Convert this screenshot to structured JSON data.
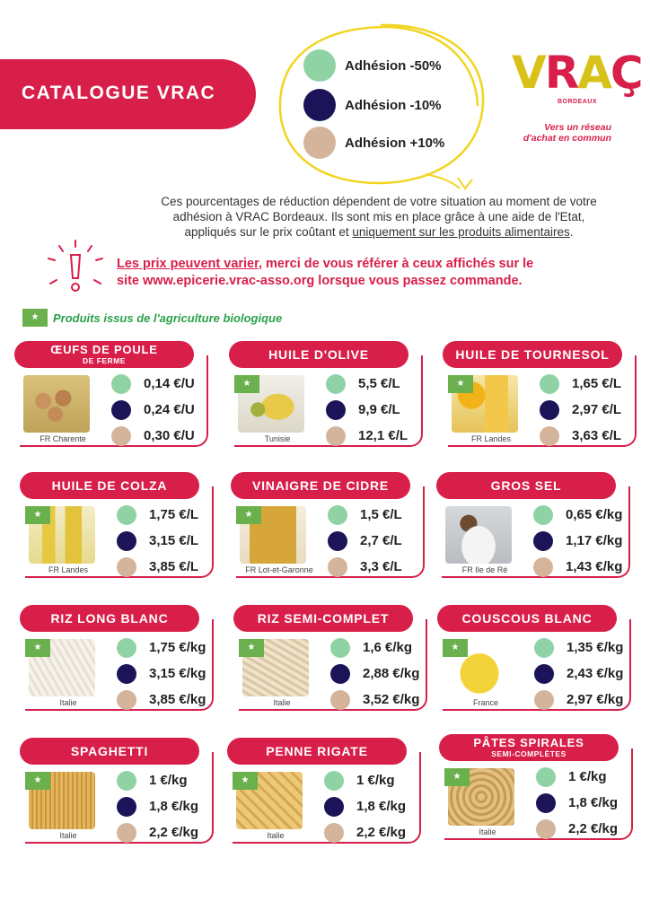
{
  "header": {
    "title": "CATALOGUE VRAC"
  },
  "colors": {
    "green": "#8fd3a5",
    "navy": "#1c1458",
    "beige": "#d4b49b",
    "accent": "#d81f4a"
  },
  "legend": [
    {
      "label": "Adhésion -50%",
      "color": "#8fd3a5"
    },
    {
      "label": "Adhésion -10%",
      "color": "#1c1458"
    },
    {
      "label": "Adhésion +10%",
      "color": "#d4b49b"
    }
  ],
  "logo": {
    "v": "V",
    "r": "R",
    "a": "A",
    "c": "Ç",
    "city": "BORDEAUX",
    "tag1": "Vers un réseau",
    "tag2": "d'achat en commun"
  },
  "intro": {
    "line1": "Ces pourcentages de réduction dépendent de votre situation au moment de votre",
    "line2": "adhésion à VRAC Bordeaux. Ils sont mis en place grâce à une aide de l'Etat,",
    "line3a": "appliqués sur le prix coûtant et ",
    "line3b": "uniquement sur les produits alimentaires",
    "line3c": "."
  },
  "warning": {
    "part1": "Les prix peuvent varier",
    "part2": ", merci de vous référer à ceux affichés sur le",
    "line2": "site www.epicerie.vrac-asso.org  lorsque vous passez commande."
  },
  "bio_label": "Produits issus de l'agriculture biologique",
  "products": [
    {
      "title": "ŒUFS DE POULE",
      "subtitle": "DE FERME",
      "origin": "FR Charente",
      "prices": [
        "0,14 €/U",
        "0,24 €/U",
        "0,30 €/U"
      ],
      "bio": false
    },
    {
      "title": "HUILE D'OLIVE",
      "subtitle": "",
      "origin": "Tunisie",
      "prices": [
        "5,5 €/L",
        "9,9 €/L",
        "12,1 €/L"
      ],
      "bio": true
    },
    {
      "title": "HUILE DE TOURNESOL",
      "subtitle": "",
      "origin": "FR Landes",
      "prices": [
        "1,65 €/L",
        "2,97 €/L",
        "3,63 €/L"
      ],
      "bio": true
    },
    {
      "title": "HUILE DE COLZA",
      "subtitle": "",
      "origin": "FR Landes",
      "prices": [
        "1,75 €/L",
        "3,15 €/L",
        "3,85 €/L"
      ],
      "bio": true
    },
    {
      "title": "VINAIGRE DE CIDRE",
      "subtitle": "",
      "origin": "FR Lot-et-Garonne",
      "prices": [
        "1,5 €/L",
        "2,7 €/L",
        "3,3 €/L"
      ],
      "bio": true
    },
    {
      "title": "GROS SEL",
      "subtitle": "",
      "origin": "FR Ile de Ré",
      "prices": [
        "0,65 €/kg",
        "1,17 €/kg",
        "1,43 €/kg"
      ],
      "bio": false
    },
    {
      "title": "RIZ LONG BLANC",
      "subtitle": "",
      "origin": "Italie",
      "prices": [
        "1,75 €/kg",
        "3,15 €/kg",
        "3,85 €/kg"
      ],
      "bio": true
    },
    {
      "title": "RIZ SEMI-COMPLET",
      "subtitle": "",
      "origin": "Italie",
      "prices": [
        "1,6 €/kg",
        "2,88 €/kg",
        "3,52 €/kg"
      ],
      "bio": true
    },
    {
      "title": "COUSCOUS BLANC",
      "subtitle": "",
      "origin": "France",
      "prices": [
        "1,35 €/kg",
        "2,43 €/kg",
        "2,97 €/kg"
      ],
      "bio": true
    },
    {
      "title": "SPAGHETTI",
      "subtitle": "",
      "origin": "Italie",
      "prices": [
        "1 €/kg",
        "1,8 €/kg",
        "2,2 €/kg"
      ],
      "bio": true
    },
    {
      "title": "PENNE RIGATE",
      "subtitle": "",
      "origin": "Italie",
      "prices": [
        "1 €/kg",
        "1,8 €/kg",
        "2,2 €/kg"
      ],
      "bio": true
    },
    {
      "title": "PÂTES SPIRALES",
      "subtitle": "SEMI-COMPLÈTES",
      "origin": "Italie",
      "prices": [
        "1 €/kg",
        "1,8 €/kg",
        "2,2 €/kg"
      ],
      "bio": true
    }
  ]
}
